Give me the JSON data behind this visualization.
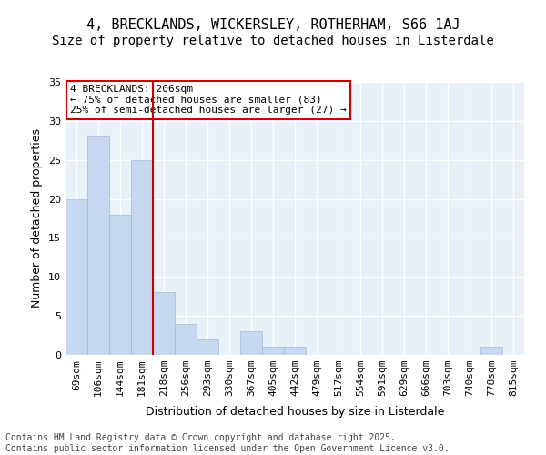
{
  "title_line1": "4, BRECKLANDS, WICKERSLEY, ROTHERHAM, S66 1AJ",
  "title_line2": "Size of property relative to detached houses in Listerdale",
  "xlabel": "Distribution of detached houses by size in Listerdale",
  "ylabel": "Number of detached properties",
  "categories": [
    "69sqm",
    "106sqm",
    "144sqm",
    "181sqm",
    "218sqm",
    "256sqm",
    "293sqm",
    "330sqm",
    "367sqm",
    "405sqm",
    "442sqm",
    "479sqm",
    "517sqm",
    "554sqm",
    "591sqm",
    "629sqm",
    "666sqm",
    "703sqm",
    "740sqm",
    "778sqm",
    "815sqm"
  ],
  "values": [
    20,
    28,
    18,
    25,
    8,
    4,
    2,
    0,
    3,
    1,
    1,
    0,
    0,
    0,
    0,
    0,
    0,
    0,
    0,
    1,
    0
  ],
  "bar_color": "#c5d8f0",
  "bar_edge_color": "#a0bcd8",
  "background_color": "#e8f0f8",
  "grid_color": "#ffffff",
  "vline_x": 3.5,
  "vline_color": "#cc0000",
  "annotation_text": "4 BRECKLANDS: 206sqm\n← 75% of detached houses are smaller (83)\n25% of semi-detached houses are larger (27) →",
  "annotation_box_color": "#ffffff",
  "annotation_box_edge_color": "#cc0000",
  "ylim": [
    0,
    35
  ],
  "yticks": [
    0,
    5,
    10,
    15,
    20,
    25,
    30,
    35
  ],
  "footer_text": "Contains HM Land Registry data © Crown copyright and database right 2025.\nContains public sector information licensed under the Open Government Licence v3.0.",
  "title_fontsize": 11,
  "subtitle_fontsize": 10,
  "axis_label_fontsize": 9,
  "tick_fontsize": 8,
  "annotation_fontsize": 8,
  "footer_fontsize": 7
}
